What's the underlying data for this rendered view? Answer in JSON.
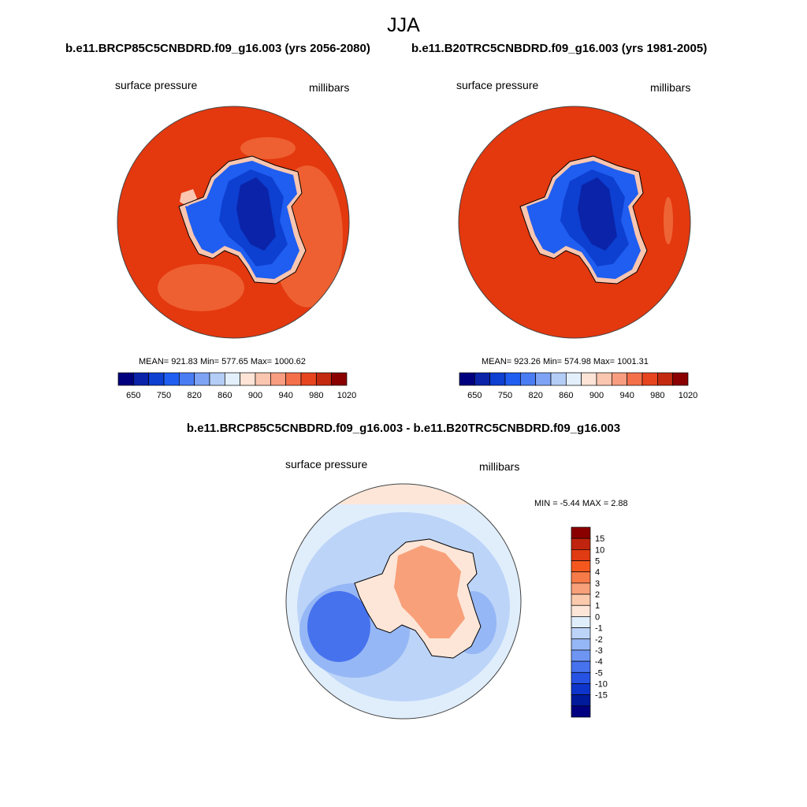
{
  "title": "JJA",
  "panels": [
    {
      "case_title": "b.e11.BRCP85C5CNBDRD.f09_g16.003 (yrs 2056-2080)",
      "variable": "surface pressure",
      "units": "millibars",
      "stats": "MEAN= 921.83  Min= 577.65  Max= 1000.62"
    },
    {
      "case_title": "b.e11.B20TRC5CNBDRD.f09_g16.003 (yrs 1981-2005)",
      "variable": "surface pressure",
      "units": "millibars",
      "stats": "MEAN= 923.26  Min= 574.98  Max= 1001.31"
    }
  ],
  "diff_panel": {
    "case_title": "b.e11.BRCP85C5CNBDRD.f09_g16.003 - b.e11.B20TRC5CNBDRD.f09_g16.003",
    "variable": "surface pressure",
    "units": "millibars",
    "stats": "MIN =  -5.44 MAX =   2.88"
  },
  "chart_data": [
    {
      "type": "heatmap",
      "projection": "south-polar-stereographic",
      "title": "b.e11.BRCP85C5CNBDRD.f09_g16.003 (yrs 2056-2080)",
      "variable": "surface pressure",
      "units": "millibars",
      "mean": 921.83,
      "min": 577.65,
      "max": 1000.62,
      "colorbar_levels": [
        650,
        750,
        820,
        860,
        900,
        940,
        980,
        1020
      ],
      "colorbar_orientation": "horizontal"
    },
    {
      "type": "heatmap",
      "projection": "south-polar-stereographic",
      "title": "b.e11.B20TRC5CNBDRD.f09_g16.003 (yrs 1981-2005)",
      "variable": "surface pressure",
      "units": "millibars",
      "mean": 923.26,
      "min": 574.98,
      "max": 1001.31,
      "colorbar_levels": [
        650,
        750,
        820,
        860,
        900,
        940,
        980,
        1020
      ],
      "colorbar_orientation": "horizontal"
    },
    {
      "type": "heatmap",
      "projection": "south-polar-stereographic",
      "title": "b.e11.BRCP85C5CNBDRD.f09_g16.003 - b.e11.B20TRC5CNBDRD.f09_g16.003",
      "variable": "surface pressure",
      "units": "millibars",
      "min": -5.44,
      "max": 2.88,
      "colorbar_levels": [
        "15",
        "10",
        "5",
        "4",
        "3",
        "2",
        "1",
        "0",
        "-1",
        "-2",
        "-3",
        "-4",
        "-5",
        "-10",
        "-15"
      ],
      "colorbar_orientation": "vertical"
    }
  ],
  "colorbars": {
    "abs_colors": [
      "#00007f",
      "#0a23a8",
      "#0d3fd0",
      "#1f5ef0",
      "#4a7cf4",
      "#7ea3f5",
      "#b4cdf7",
      "#e3effb",
      "#fde4d6",
      "#fbc6b0",
      "#f89d80",
      "#f3704a",
      "#e7451f",
      "#c32a10",
      "#8a0000"
    ],
    "abs_ticks": [
      "650",
      "750",
      "820",
      "860",
      "900",
      "940",
      "980",
      "1020"
    ],
    "diff_colors": [
      "#8a0000",
      "#c0240e",
      "#e03b12",
      "#f4581f",
      "#f67b48",
      "#f8a07a",
      "#fbcaac",
      "#fde6d8",
      "#e0eefc",
      "#bcd4f8",
      "#96b7f5",
      "#6e95f2",
      "#4672ee",
      "#2653e4",
      "#0e35cb",
      "#001a9c",
      "#000080"
    ],
    "diff_ticks": [
      "15",
      "10",
      "5",
      "4",
      "3",
      "2",
      "1",
      "0",
      "-1",
      "-2",
      "-3",
      "-4",
      "-5",
      "-10",
      "-15"
    ]
  }
}
